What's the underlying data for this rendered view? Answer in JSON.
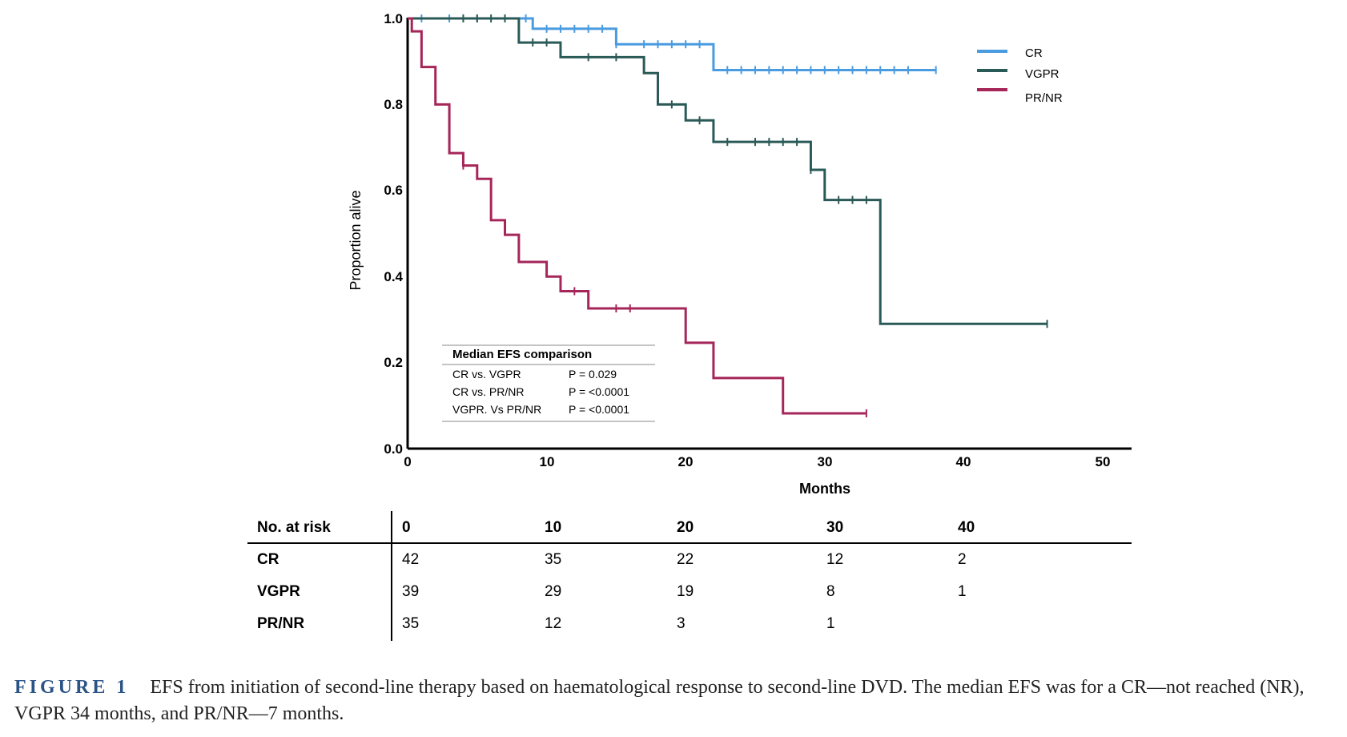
{
  "chart_data": {
    "type": "line",
    "step": true,
    "xlabel": "Months",
    "ylabel": "Proportion alive",
    "xlim": [
      0,
      52
    ],
    "ylim": [
      0,
      1.0
    ],
    "xticks": [
      "0",
      "10",
      "20",
      "30",
      "40",
      "50"
    ],
    "yticks": [
      "0.0",
      "0.2",
      "0.4",
      "0.6",
      "0.8",
      "1.0"
    ],
    "grid": false,
    "legend_position": "top-right",
    "series": [
      {
        "name": "CR",
        "color": "#4a9be0",
        "steps": [
          [
            0,
            1.0
          ],
          [
            9,
            0.976
          ],
          [
            15,
            0.94
          ],
          [
            22,
            0.88
          ],
          [
            38,
            0.88
          ]
        ],
        "censored": [
          [
            1,
            1.0
          ],
          [
            3,
            1.0
          ],
          [
            5,
            1.0
          ],
          [
            7,
            1.0
          ],
          [
            8.5,
            1.0
          ],
          [
            10,
            0.976
          ],
          [
            11,
            0.976
          ],
          [
            12,
            0.976
          ],
          [
            13,
            0.976
          ],
          [
            14,
            0.976
          ],
          [
            15,
            0.94
          ],
          [
            17,
            0.94
          ],
          [
            18,
            0.94
          ],
          [
            19,
            0.94
          ],
          [
            20,
            0.94
          ],
          [
            21,
            0.94
          ],
          [
            23,
            0.88
          ],
          [
            24,
            0.88
          ],
          [
            25,
            0.88
          ],
          [
            26,
            0.88
          ],
          [
            27,
            0.88
          ],
          [
            28,
            0.88
          ],
          [
            29,
            0.88
          ],
          [
            30,
            0.88
          ],
          [
            31,
            0.88
          ],
          [
            32,
            0.88
          ],
          [
            33,
            0.88
          ],
          [
            34,
            0.88
          ],
          [
            35,
            0.88
          ],
          [
            36,
            0.88
          ],
          [
            38,
            0.88
          ]
        ]
      },
      {
        "name": "VGPR",
        "color": "#2a5a57",
        "steps": [
          [
            0,
            1.0
          ],
          [
            8,
            0.944
          ],
          [
            11,
            0.91
          ],
          [
            17,
            0.873
          ],
          [
            18,
            0.8
          ],
          [
            20,
            0.763
          ],
          [
            22,
            0.713
          ],
          [
            29,
            0.648
          ],
          [
            30,
            0.578
          ],
          [
            34,
            0.29
          ],
          [
            46,
            0.29
          ]
        ],
        "censored": [
          [
            4,
            1.0
          ],
          [
            5,
            1.0
          ],
          [
            6,
            1.0
          ],
          [
            7,
            1.0
          ],
          [
            9,
            0.944
          ],
          [
            10,
            0.944
          ],
          [
            13,
            0.91
          ],
          [
            15,
            0.91
          ],
          [
            19,
            0.8
          ],
          [
            21,
            0.763
          ],
          [
            23,
            0.713
          ],
          [
            25,
            0.713
          ],
          [
            26,
            0.713
          ],
          [
            27,
            0.713
          ],
          [
            28,
            0.713
          ],
          [
            29,
            0.648
          ],
          [
            31,
            0.578
          ],
          [
            32,
            0.578
          ],
          [
            33,
            0.578
          ],
          [
            46,
            0.29
          ]
        ]
      },
      {
        "name": "PR/NR",
        "color": "#a6265a",
        "steps": [
          [
            0,
            1.0
          ],
          [
            0.3,
            0.97
          ],
          [
            1,
            0.887
          ],
          [
            2,
            0.8
          ],
          [
            3,
            0.687
          ],
          [
            4,
            0.658
          ],
          [
            5,
            0.627
          ],
          [
            6,
            0.531
          ],
          [
            7,
            0.497
          ],
          [
            8,
            0.434
          ],
          [
            10,
            0.4
          ],
          [
            11,
            0.366
          ],
          [
            13,
            0.326
          ],
          [
            20,
            0.246
          ],
          [
            22,
            0.164
          ],
          [
            27,
            0.082
          ],
          [
            33,
            0.082
          ]
        ],
        "censored": [
          [
            4,
            0.658
          ],
          [
            12,
            0.366
          ],
          [
            15,
            0.326
          ],
          [
            16,
            0.326
          ],
          [
            33,
            0.082
          ]
        ]
      }
    ],
    "annotation_table": {
      "title": "Median EFS comparison",
      "rows": [
        {
          "comparison": "CR vs. VGPR",
          "p": "P = 0.029"
        },
        {
          "comparison": "CR vs. PR/NR",
          "p": "P = <0.0001"
        },
        {
          "comparison": "VGPR. Vs PR/NR",
          "p": "P = <0.0001"
        }
      ]
    }
  },
  "risk_table": {
    "header_label": "No. at risk",
    "times": [
      "0",
      "10",
      "20",
      "30",
      "40"
    ],
    "rows": [
      {
        "label": "CR",
        "values": [
          "42",
          "35",
          "22",
          "12",
          "2"
        ]
      },
      {
        "label": "VGPR",
        "values": [
          "39",
          "29",
          "19",
          "8",
          "1"
        ]
      },
      {
        "label": "PR/NR",
        "values": [
          "35",
          "12",
          "3",
          "1",
          ""
        ]
      }
    ]
  },
  "caption": {
    "label": "FIGURE 1",
    "text": "EFS from initiation of second-line therapy based on haematological response to second-line DVD. The median EFS was for a CR—not reached (NR), VGPR 34 months, and PR/NR—7 months."
  }
}
